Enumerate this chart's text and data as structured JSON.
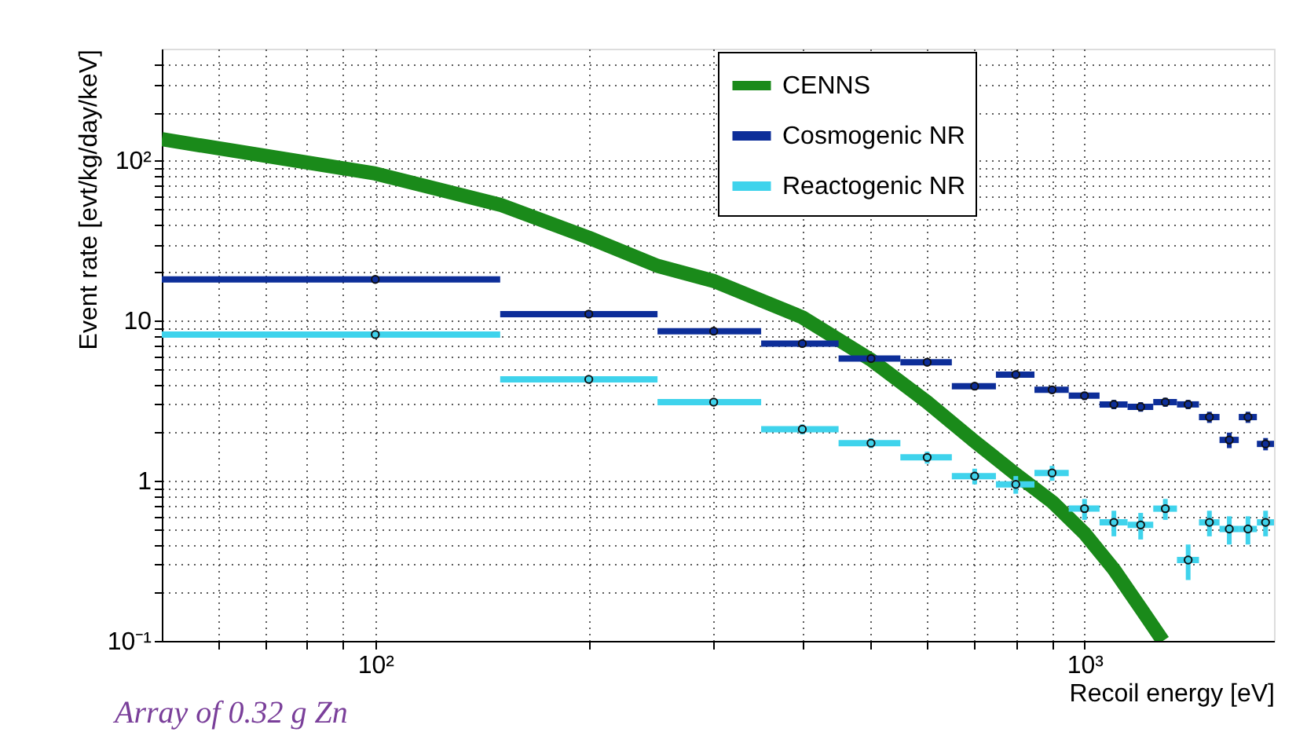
{
  "chart_data": {
    "type": "scatter",
    "xlabel": "Recoil energy [eV]",
    "ylabel": "Event rate [evt/kg/day/keV]",
    "log": "xy",
    "grid": true,
    "legend": "top right",
    "xlim": [
      50,
      1850
    ],
    "ylim": [
      0.1,
      500
    ],
    "xticks": [
      {
        "value": 60,
        "label": null
      },
      {
        "value": 70,
        "label": null
      },
      {
        "value": 80,
        "label": null
      },
      {
        "value": 90,
        "label": null
      },
      {
        "value": 100,
        "label": "10²"
      },
      {
        "value": 200,
        "label": null
      },
      {
        "value": 300,
        "label": null
      },
      {
        "value": 400,
        "label": null
      },
      {
        "value": 500,
        "label": null
      },
      {
        "value": 600,
        "label": null
      },
      {
        "value": 700,
        "label": null
      },
      {
        "value": 800,
        "label": null
      },
      {
        "value": 900,
        "label": null
      },
      {
        "value": 1000,
        "label": "10³"
      }
    ],
    "yticks": [
      {
        "value": 0.1,
        "label": "10⁻¹"
      },
      {
        "value": 0.2,
        "label": null
      },
      {
        "value": 0.3,
        "label": null
      },
      {
        "value": 0.4,
        "label": null
      },
      {
        "value": 0.5,
        "label": null
      },
      {
        "value": 0.6,
        "label": null
      },
      {
        "value": 0.7,
        "label": null
      },
      {
        "value": 0.8,
        "label": null
      },
      {
        "value": 0.9,
        "label": null
      },
      1,
      {
        "value": 2,
        "label": null
      },
      {
        "value": 3,
        "label": null
      },
      {
        "value": 4,
        "label": null
      },
      {
        "value": 5,
        "label": null
      },
      {
        "value": 6,
        "label": null
      },
      {
        "value": 7,
        "label": null
      },
      {
        "value": 8,
        "label": null
      },
      {
        "value": 9,
        "label": null
      },
      10,
      {
        "value": 20,
        "label": null
      },
      {
        "value": 30,
        "label": null
      },
      {
        "value": 40,
        "label": null
      },
      {
        "value": 50,
        "label": null
      },
      {
        "value": 60,
        "label": null
      },
      {
        "value": 70,
        "label": null
      },
      {
        "value": 80,
        "label": null
      },
      {
        "value": 90,
        "label": null
      },
      {
        "value": 100,
        "label": "10²"
      },
      {
        "value": 200,
        "label": null
      },
      {
        "value": 300,
        "label": null
      },
      {
        "value": 400,
        "label": null
      }
    ],
    "series": [
      {
        "name": "CENNS",
        "type": "line",
        "color": "#1a8a1a",
        "x": [
          50,
          100,
          150,
          200,
          250,
          300,
          400,
          500,
          600,
          700,
          800,
          900,
          1000,
          1100,
          1200,
          1290
        ],
        "values": [
          136,
          83,
          53,
          33,
          22,
          17.7,
          10.5,
          5.7,
          3.1,
          1.76,
          1.1,
          0.74,
          0.47,
          0.28,
          0.16,
          0.1
        ]
      },
      {
        "name": "Cosmogenic NR",
        "color": "#0d2e99",
        "marker": "circle",
        "x": [
          100,
          200,
          300,
          400,
          500,
          600,
          700,
          800,
          900,
          1000,
          1100,
          1200,
          1300,
          1400,
          1500,
          1600,
          1700,
          1800
        ],
        "values": [
          18.1,
          11.0,
          8.6,
          7.2,
          5.8,
          5.5,
          3.9,
          4.6,
          3.7,
          3.4,
          3.0,
          2.9,
          3.1,
          3.0,
          2.5,
          1.8,
          2.5,
          1.7
        ],
        "xerrors": [
          50,
          50,
          50,
          50,
          50,
          50,
          50,
          50,
          50,
          50,
          50,
          50,
          50,
          50,
          50,
          50,
          50,
          50
        ],
        "errors": [
          null,
          null,
          null,
          null,
          null,
          null,
          0.2,
          0.2,
          0.2,
          0.2,
          0.2,
          0.2,
          0.2,
          0.2,
          0.2,
          0.2,
          0.2,
          0.15
        ]
      },
      {
        "name": "Reactogenic NR",
        "color": "#3fd3ec",
        "marker": "circle",
        "x": [
          100,
          200,
          300,
          400,
          500,
          600,
          700,
          800,
          900,
          1000,
          1100,
          1200,
          1300,
          1400,
          1500,
          1600,
          1700,
          1800
        ],
        "values": [
          8.2,
          4.3,
          3.1,
          2.1,
          1.72,
          1.4,
          1.07,
          0.95,
          1.12,
          0.67,
          0.55,
          0.53,
          0.67,
          0.32,
          0.55,
          0.5,
          0.5,
          0.55
        ],
        "xerrors": [
          50,
          50,
          50,
          50,
          50,
          50,
          50,
          50,
          50,
          50,
          50,
          50,
          50,
          50,
          50,
          50,
          50,
          50
        ],
        "errors": [
          null,
          null,
          0.15,
          0.15,
          0.12,
          0.12,
          0.12,
          0.12,
          0.12,
          0.1,
          0.1,
          0.1,
          0.1,
          0.08,
          0.1,
          0.1,
          0.1,
          0.1
        ]
      }
    ],
    "annotations": [
      "Array of 0.32 g Zn"
    ]
  }
}
